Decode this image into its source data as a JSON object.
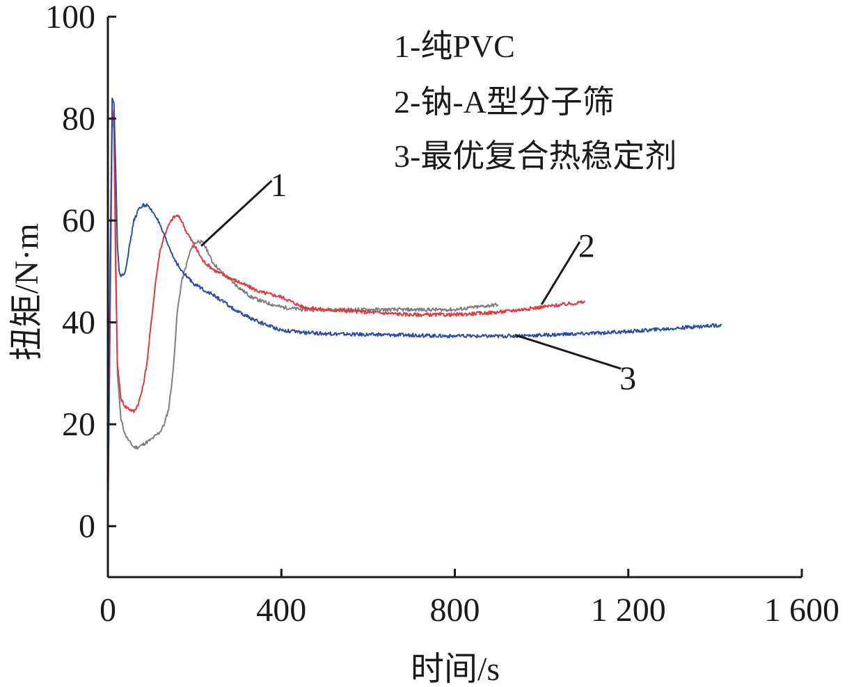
{
  "chart_data": {
    "type": "line",
    "xlabel": "时间/s",
    "ylabel": "扭矩/N·m",
    "xlim": [
      0,
      1600
    ],
    "ylim": [
      -10,
      100
    ],
    "x_ticks": [
      0,
      400,
      800,
      1200,
      1600
    ],
    "x_tick_labels": [
      "0",
      "400",
      "800",
      "1 200",
      "1 600"
    ],
    "y_ticks": [
      0,
      20,
      40,
      60,
      80,
      100
    ],
    "y_tick_labels": [
      "0",
      "20",
      "40",
      "60",
      "80",
      "100"
    ],
    "grid": false,
    "legend_position": "top-right",
    "legend": [
      "1-纯PVC",
      "2-钠-A型分子筛",
      "3-最优复合热稳定剂"
    ],
    "series": [
      {
        "id": "1",
        "color": "#7f7f7f",
        "x": [
          0,
          5,
          10,
          14,
          18,
          22,
          30,
          40,
          50,
          60,
          70,
          80,
          100,
          120,
          130,
          140,
          150,
          160,
          170,
          180,
          190,
          200,
          210,
          220,
          230,
          240,
          260,
          280,
          300,
          330,
          360,
          400,
          450,
          500,
          600,
          700,
          800,
          900
        ],
        "y": [
          0,
          45,
          80,
          78,
          55,
          30,
          21,
          18,
          16.5,
          15.5,
          15.5,
          16,
          17,
          18.5,
          20,
          23,
          30,
          42,
          48,
          51,
          54,
          55.5,
          56,
          55.5,
          54,
          52,
          50,
          48.5,
          47,
          45,
          44,
          43,
          42.5,
          42.5,
          42.5,
          42.5,
          42.5,
          43.5
        ]
      },
      {
        "id": "2",
        "color": "#e0393e",
        "x": [
          0,
          5,
          10,
          14,
          18,
          22,
          30,
          40,
          50,
          60,
          70,
          80,
          90,
          100,
          110,
          120,
          130,
          140,
          150,
          160,
          170,
          180,
          200,
          220,
          250,
          300,
          350,
          400,
          450,
          500,
          600,
          700,
          800,
          900,
          1000,
          1100
        ],
        "y": [
          0,
          40,
          82,
          79,
          50,
          32,
          25,
          23.5,
          23,
          22.5,
          24,
          27,
          32,
          40,
          48,
          54,
          57,
          59,
          60.5,
          61,
          60,
          58,
          55,
          52,
          50,
          48,
          46,
          45,
          43,
          42.5,
          42,
          41.5,
          41.5,
          42,
          43,
          44
        ]
      },
      {
        "id": "3",
        "color": "#2b4f9e",
        "x": [
          0,
          5,
          10,
          14,
          18,
          22,
          26,
          30,
          40,
          50,
          60,
          70,
          80,
          90,
          100,
          110,
          130,
          150,
          170,
          200,
          250,
          300,
          350,
          400,
          450,
          500,
          600,
          700,
          800,
          900,
          1000,
          1100,
          1200,
          1300,
          1415
        ],
        "y": [
          0,
          50,
          84,
          83,
          70,
          55,
          50,
          49,
          50,
          55,
          60,
          62,
          63,
          63,
          62,
          61,
          57,
          53,
          50,
          47.5,
          45,
          42,
          40,
          38.5,
          38,
          37.8,
          37.6,
          37.5,
          37.3,
          37.3,
          37.5,
          37.8,
          38.2,
          38.8,
          39.5
        ]
      }
    ],
    "annotations": [
      {
        "label": "1",
        "x_from": 215,
        "y_from": 55,
        "label_x": 410,
        "label_y": 67
      },
      {
        "label": "2",
        "x_from": 1000,
        "y_from": 43.5,
        "label_x": 1120,
        "label_y": 55
      },
      {
        "label": "3",
        "x_from": 940,
        "y_from": 37.5,
        "label_x": 1215,
        "label_y": 29
      }
    ]
  }
}
